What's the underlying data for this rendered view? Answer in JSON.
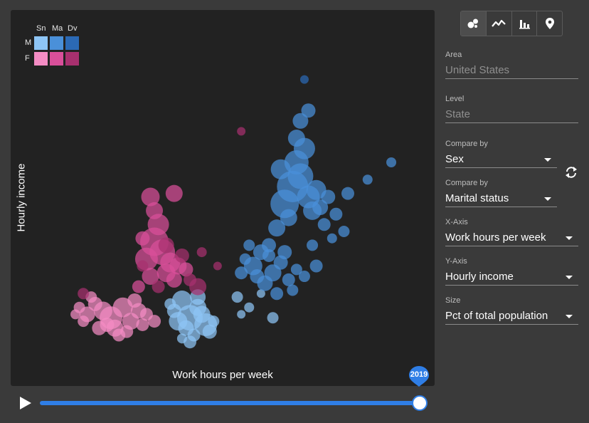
{
  "legend": {
    "columns": [
      "Sn",
      "Ma",
      "Dv"
    ],
    "rows": [
      "M",
      "F"
    ],
    "colors": {
      "M": [
        "#8ec5f5",
        "#4a90d9",
        "#2b69b5"
      ],
      "F": [
        "#f48cc4",
        "#d94f9a",
        "#a8306f"
      ]
    }
  },
  "chart": {
    "xlabel": "Work hours per week",
    "ylabel": "Hourly income"
  },
  "toolbar": {
    "buttons": [
      "scatter-view",
      "line-view",
      "bar-view",
      "map-view"
    ],
    "active": "scatter-view"
  },
  "controls": {
    "area": {
      "label": "Area",
      "value": "United States"
    },
    "level": {
      "label": "Level",
      "value": "State"
    },
    "compare1": {
      "label": "Compare by",
      "value": "Sex"
    },
    "compare2": {
      "label": "Compare by",
      "value": "Marital status"
    },
    "xaxis": {
      "label": "X-Axis",
      "value": "Work hours per week"
    },
    "yaxis": {
      "label": "Y-Axis",
      "value": "Hourly income"
    },
    "size": {
      "label": "Size",
      "value": "Pct of total population"
    }
  },
  "timeline": {
    "year": "2019",
    "progress": 1.0
  },
  "chart_data": {
    "type": "scatter",
    "xlabel": "Work hours per week",
    "ylabel": "Hourly income",
    "series": [
      {
        "name": "M Sn",
        "color": "#8ec5f5",
        "points": [
          [
            0.38,
            0.2
          ],
          [
            0.4,
            0.15
          ],
          [
            0.42,
            0.18
          ],
          [
            0.36,
            0.17
          ],
          [
            0.44,
            0.13
          ],
          [
            0.39,
            0.12
          ],
          [
            0.41,
            0.1
          ],
          [
            0.37,
            0.14
          ],
          [
            0.43,
            0.16
          ],
          [
            0.35,
            0.19
          ],
          [
            0.45,
            0.11
          ],
          [
            0.4,
            0.08
          ],
          [
            0.38,
            0.09
          ],
          [
            0.42,
            0.21
          ],
          [
            0.46,
            0.14
          ],
          [
            0.52,
            0.21
          ],
          [
            0.55,
            0.18
          ],
          [
            0.53,
            0.16
          ],
          [
            0.61,
            0.15
          ],
          [
            0.58,
            0.22
          ]
        ],
        "sizes": [
          14,
          18,
          12,
          10,
          16,
          11,
          9,
          13,
          12,
          8,
          10,
          9,
          7,
          11,
          8,
          8,
          7,
          6,
          8,
          6
        ]
      },
      {
        "name": "M Ma",
        "color": "#4a90d9",
        "points": [
          [
            0.66,
            0.53
          ],
          [
            0.68,
            0.56
          ],
          [
            0.7,
            0.5
          ],
          [
            0.64,
            0.48
          ],
          [
            0.72,
            0.52
          ],
          [
            0.67,
            0.6
          ],
          [
            0.69,
            0.64
          ],
          [
            0.71,
            0.46
          ],
          [
            0.65,
            0.44
          ],
          [
            0.73,
            0.47
          ],
          [
            0.75,
            0.5
          ],
          [
            0.63,
            0.58
          ],
          [
            0.67,
            0.67
          ],
          [
            0.68,
            0.72
          ],
          [
            0.7,
            0.75
          ],
          [
            0.74,
            0.42
          ],
          [
            0.62,
            0.41
          ],
          [
            0.77,
            0.45
          ],
          [
            0.6,
            0.36
          ],
          [
            0.56,
            0.3
          ],
          [
            0.58,
            0.34
          ],
          [
            0.61,
            0.28
          ],
          [
            0.63,
            0.31
          ],
          [
            0.65,
            0.26
          ],
          [
            0.59,
            0.25
          ],
          [
            0.67,
            0.29
          ],
          [
            0.57,
            0.27
          ],
          [
            0.62,
            0.22
          ],
          [
            0.66,
            0.23
          ],
          [
            0.6,
            0.33
          ],
          [
            0.54,
            0.32
          ],
          [
            0.53,
            0.28
          ],
          [
            0.64,
            0.34
          ],
          [
            0.69,
            0.27
          ],
          [
            0.72,
            0.3
          ],
          [
            0.55,
            0.36
          ],
          [
            0.71,
            0.36
          ],
          [
            0.76,
            0.38
          ],
          [
            0.79,
            0.4
          ],
          [
            0.8,
            0.51
          ],
          [
            0.85,
            0.55
          ],
          [
            0.91,
            0.6
          ]
        ],
        "sizes": [
          22,
          18,
          16,
          20,
          14,
          17,
          15,
          13,
          12,
          11,
          10,
          14,
          12,
          11,
          10,
          9,
          12,
          9,
          10,
          13,
          11,
          12,
          10,
          9,
          11,
          8,
          10,
          9,
          8,
          9,
          8,
          9,
          10,
          8,
          9,
          8,
          8,
          7,
          8,
          9,
          7,
          7
        ]
      },
      {
        "name": "M Dv",
        "color": "#2b69b5",
        "points": [
          [
            0.69,
            0.84
          ]
        ],
        "sizes": [
          6
        ]
      },
      {
        "name": "F Sn",
        "color": "#f48cc4",
        "points": [
          [
            0.2,
            0.15
          ],
          [
            0.23,
            0.18
          ],
          [
            0.18,
            0.17
          ],
          [
            0.25,
            0.14
          ],
          [
            0.21,
            0.12
          ],
          [
            0.16,
            0.19
          ],
          [
            0.14,
            0.16
          ],
          [
            0.19,
            0.13
          ],
          [
            0.27,
            0.17
          ],
          [
            0.24,
            0.11
          ],
          [
            0.22,
            0.1
          ],
          [
            0.17,
            0.12
          ],
          [
            0.12,
            0.18
          ],
          [
            0.28,
            0.13
          ],
          [
            0.13,
            0.14
          ],
          [
            0.11,
            0.16
          ],
          [
            0.26,
            0.2
          ],
          [
            0.15,
            0.21
          ],
          [
            0.29,
            0.16
          ],
          [
            0.31,
            0.14
          ]
        ],
        "sizes": [
          16,
          14,
          13,
          12,
          12,
          10,
          11,
          10,
          11,
          9,
          9,
          10,
          8,
          9,
          8,
          7,
          10,
          8,
          9,
          9
        ]
      },
      {
        "name": "F Ma",
        "color": "#d94f9a",
        "points": [
          [
            0.31,
            0.37
          ],
          [
            0.33,
            0.34
          ],
          [
            0.29,
            0.32
          ],
          [
            0.35,
            0.31
          ],
          [
            0.32,
            0.42
          ],
          [
            0.34,
            0.28
          ],
          [
            0.3,
            0.27
          ],
          [
            0.37,
            0.3
          ],
          [
            0.36,
            0.26
          ],
          [
            0.28,
            0.38
          ],
          [
            0.31,
            0.46
          ],
          [
            0.3,
            0.5
          ],
          [
            0.36,
            0.51
          ],
          [
            0.39,
            0.29
          ],
          [
            0.27,
            0.24
          ]
        ],
        "sizes": [
          20,
          18,
          16,
          14,
          15,
          13,
          12,
          12,
          11,
          10,
          12,
          13,
          12,
          10,
          9
        ]
      },
      {
        "name": "F Dv",
        "color": "#a8306f",
        "points": [
          [
            0.34,
            0.36
          ],
          [
            0.38,
            0.33
          ],
          [
            0.32,
            0.24
          ],
          [
            0.4,
            0.26
          ],
          [
            0.42,
            0.24
          ],
          [
            0.28,
            0.3
          ],
          [
            0.43,
            0.34
          ],
          [
            0.53,
            0.69
          ],
          [
            0.47,
            0.3
          ],
          [
            0.13,
            0.22
          ]
        ],
        "sizes": [
          11,
          10,
          9,
          9,
          12,
          8,
          7,
          6,
          6,
          8
        ]
      }
    ]
  }
}
